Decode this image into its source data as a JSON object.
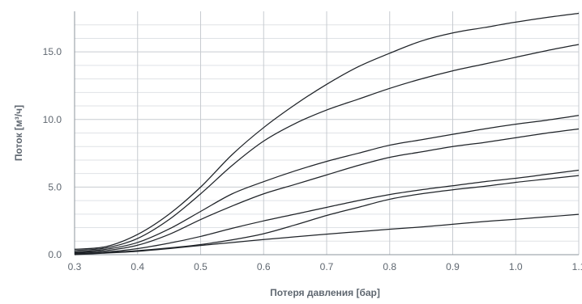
{
  "chart_data": {
    "type": "line",
    "title": "",
    "xlabel": "Потеря давления [бар]",
    "ylabel": "Поток [м³/ч]",
    "xlim": [
      0.3,
      1.1
    ],
    "ylim": [
      0,
      18
    ],
    "x_ticks": [
      0.3,
      0.4,
      0.5,
      0.6,
      0.7,
      0.8,
      0.9,
      1.0,
      1.1
    ],
    "x_tick_labels": [
      "0.3",
      "0.4",
      "0.5",
      "0.6",
      "0.7",
      "0.8",
      "0.9",
      "1.0",
      "1.1"
    ],
    "y_ticks": [
      0,
      5,
      10,
      15
    ],
    "y_tick_labels": [
      "0.0",
      "5.0",
      "10.0",
      "15.0"
    ],
    "y_minor_step": 1,
    "grid": true,
    "legend": "none",
    "colors": {
      "line": "#1f2328",
      "grid_major": "#c7cbd0",
      "grid_minor": "#dfe2e6",
      "text": "#5f6770"
    },
    "series": [
      {
        "x": [
          0.3,
          0.35,
          0.4,
          0.45,
          0.5,
          0.55,
          0.6,
          0.65,
          0.7,
          0.75,
          0.8,
          0.85,
          0.9,
          0.95,
          1.0,
          1.05,
          1.1
        ],
        "values": [
          0.4,
          0.6,
          1.5,
          3.0,
          5.0,
          7.4,
          9.4,
          11.1,
          12.6,
          13.9,
          14.9,
          15.8,
          16.4,
          16.8,
          17.2,
          17.55,
          17.85
        ]
      },
      {
        "x": [
          0.3,
          0.35,
          0.4,
          0.45,
          0.5,
          0.55,
          0.6,
          0.65,
          0.7,
          0.75,
          0.8,
          0.85,
          0.9,
          0.95,
          1.0,
          1.05,
          1.1
        ],
        "values": [
          0.3,
          0.5,
          1.2,
          2.6,
          4.5,
          6.6,
          8.4,
          9.7,
          10.7,
          11.5,
          12.3,
          13.0,
          13.6,
          14.1,
          14.6,
          15.1,
          15.55
        ]
      },
      {
        "x": [
          0.3,
          0.35,
          0.4,
          0.45,
          0.5,
          0.55,
          0.6,
          0.65,
          0.7,
          0.75,
          0.8,
          0.85,
          0.9,
          0.95,
          1.0,
          1.05,
          1.1
        ],
        "values": [
          0.2,
          0.4,
          0.9,
          1.9,
          3.2,
          4.5,
          5.4,
          6.2,
          6.9,
          7.5,
          8.1,
          8.5,
          8.9,
          9.3,
          9.65,
          9.95,
          10.3
        ]
      },
      {
        "x": [
          0.3,
          0.35,
          0.4,
          0.45,
          0.5,
          0.55,
          0.6,
          0.65,
          0.7,
          0.75,
          0.8,
          0.85,
          0.9,
          0.95,
          1.0,
          1.05,
          1.1
        ],
        "values": [
          0.15,
          0.3,
          0.7,
          1.5,
          2.6,
          3.6,
          4.5,
          5.2,
          5.9,
          6.6,
          7.2,
          7.6,
          8.0,
          8.3,
          8.65,
          9.0,
          9.3
        ]
      },
      {
        "x": [
          0.3,
          0.35,
          0.4,
          0.45,
          0.5,
          0.55,
          0.6,
          0.65,
          0.7,
          0.75,
          0.8,
          0.85,
          0.9,
          0.95,
          1.0,
          1.05,
          1.1
        ],
        "values": [
          0.1,
          0.2,
          0.45,
          0.85,
          1.35,
          1.95,
          2.5,
          3.0,
          3.5,
          4.0,
          4.45,
          4.8,
          5.1,
          5.4,
          5.65,
          5.95,
          6.25
        ]
      },
      {
        "x": [
          0.3,
          0.35,
          0.4,
          0.45,
          0.5,
          0.55,
          0.6,
          0.65,
          0.7,
          0.75,
          0.8,
          0.85,
          0.9,
          0.95,
          1.0,
          1.05,
          1.1
        ],
        "values": [
          0.05,
          0.15,
          0.3,
          0.5,
          0.75,
          1.1,
          1.55,
          2.2,
          2.9,
          3.5,
          4.1,
          4.5,
          4.8,
          5.05,
          5.35,
          5.6,
          5.85
        ]
      },
      {
        "x": [
          0.3,
          0.35,
          0.4,
          0.45,
          0.5,
          0.55,
          0.6,
          0.65,
          0.7,
          0.75,
          0.8,
          0.85,
          0.9,
          0.95,
          1.0,
          1.05,
          1.1
        ],
        "values": [
          0.0,
          0.12,
          0.25,
          0.45,
          0.68,
          0.9,
          1.12,
          1.32,
          1.52,
          1.7,
          1.88,
          2.05,
          2.25,
          2.45,
          2.62,
          2.8,
          2.98
        ]
      }
    ]
  }
}
